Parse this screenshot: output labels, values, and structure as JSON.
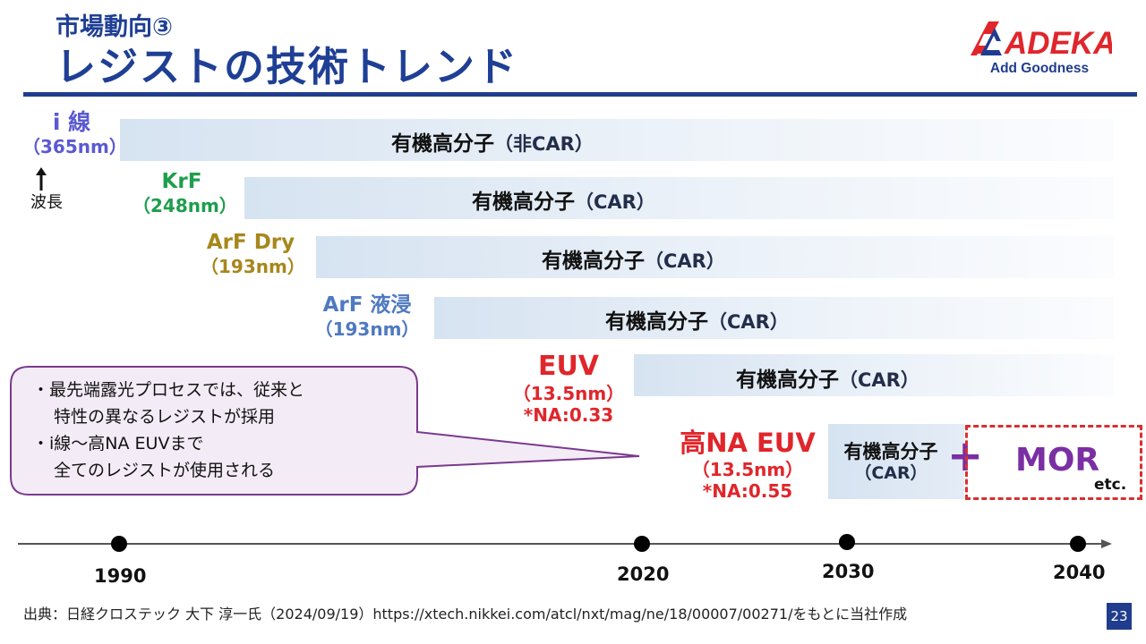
{
  "header": {
    "subtitle": "市場動向③",
    "title": "レジストの技術トレンド",
    "logo_text": "ADEKA",
    "logo_tagline": "Add Goodness"
  },
  "colors": {
    "title_blue": "#1f3f95",
    "logo_red": "#e0262b",
    "i_line": "#5a5ad2",
    "krf": "#1e9e4c",
    "arf_dry": "#a7871b",
    "arf_immersion": "#4f79c0",
    "euv": "#e0262b",
    "high_na_euv": "#e0262b",
    "mor_purple": "#7a2fa2"
  },
  "wavelengths": {
    "i_line": {
      "name": "i 線",
      "wavelength": "（365nm）",
      "note": "波長"
    },
    "krf": {
      "name": "KrF",
      "wavelength": "（248nm）"
    },
    "arf_dry": {
      "name": "ArF Dry",
      "wavelength": "（193nm）"
    },
    "arf_immersion": {
      "name": "ArF 液浸",
      "wavelength": "（193nm）"
    },
    "euv": {
      "name": "EUV",
      "wavelength": "（13.5nm）",
      "na": "*NA:0.33"
    },
    "high_na_euv": {
      "name": "高NA EUV",
      "wavelength": "（13.5nm）",
      "na": "*NA:0.55"
    }
  },
  "bars": {
    "i_line": {
      "main": "有機高分子",
      "paren": "（非CAR）"
    },
    "krf": {
      "main": "有機高分子",
      "paren": "（CAR）"
    },
    "arf_dry": {
      "main": "有機高分子",
      "paren": "（CAR）"
    },
    "arf_immersion": {
      "main": "有機高分子",
      "paren": "（CAR）"
    },
    "euv": {
      "main": "有機高分子",
      "paren": "（CAR）"
    },
    "high_na_euv": {
      "main": "有機高分子",
      "paren": "（CAR）"
    }
  },
  "plus_sign": "+",
  "mor": {
    "label": "MOR",
    "suffix": "etc."
  },
  "callout": {
    "line1": "・最先端露光プロセスでは、従来と",
    "line2": "特性の異なるレジストが採用",
    "line3": "・i線～高NA EUVまで",
    "line4": "全てのレジストが使用される"
  },
  "timeline": {
    "years": [
      "1990",
      "2020",
      "2030",
      "2040"
    ]
  },
  "source_note": "出典：日経クロステック 大下 淳一氏（2024/09/19）https://xtech.nikkei.com/atcl/nxt/mag/ne/18/00007/00271/をもとに当社作成",
  "page_number": "23"
}
